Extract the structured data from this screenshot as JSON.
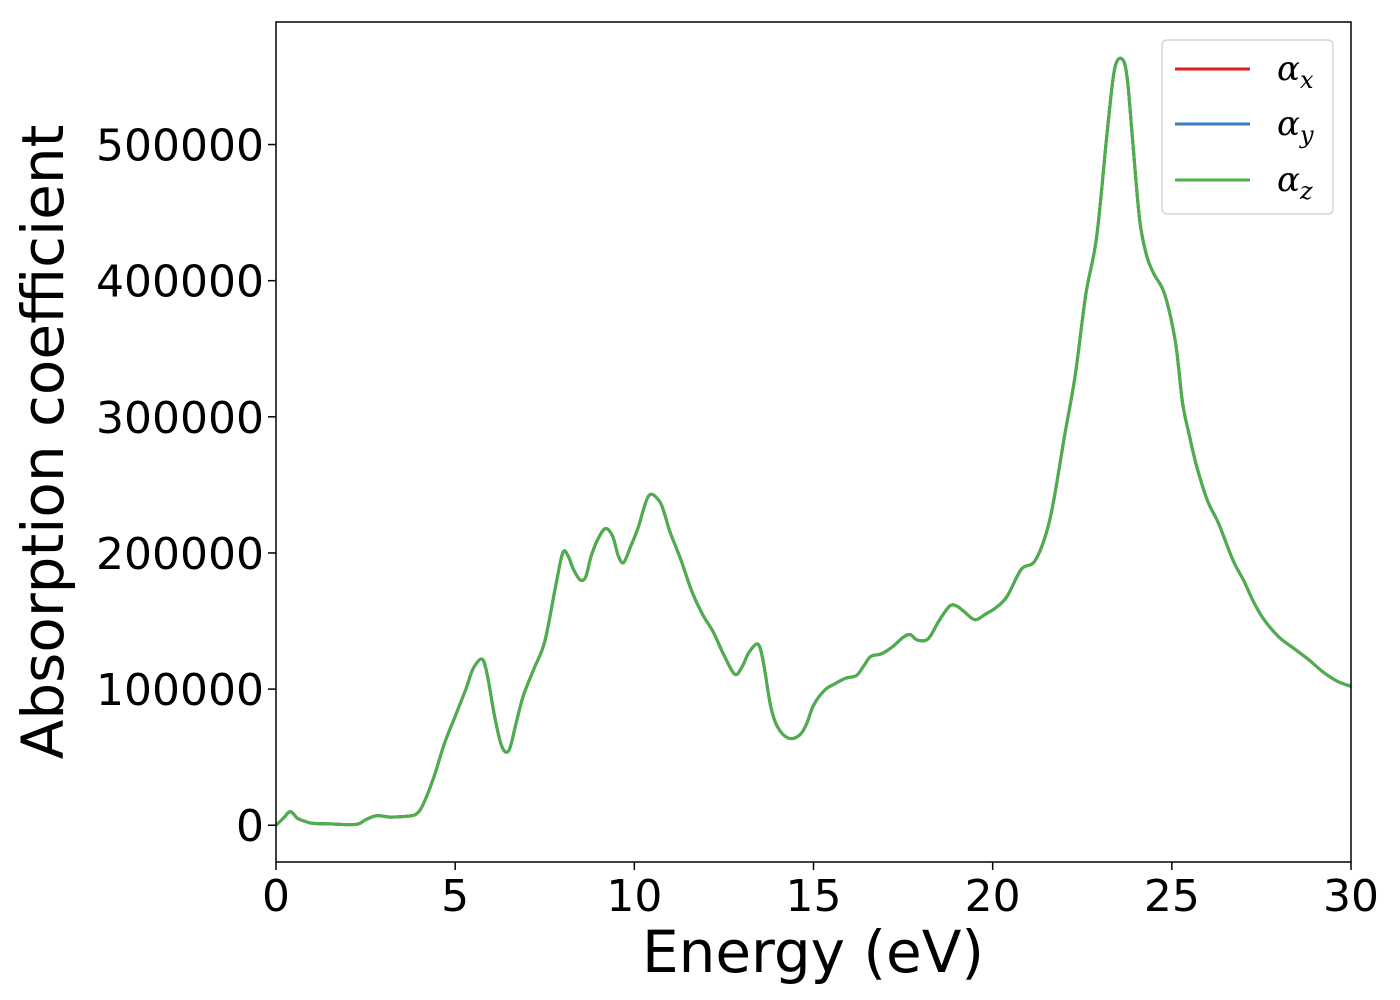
{
  "chart_data": {
    "type": "line",
    "xlabel": "Energy (eV)",
    "ylabel": "Absorption coefficient",
    "xlim": [
      0,
      30
    ],
    "ylim": [
      -27000,
      590000
    ],
    "xticks": [
      0,
      5,
      10,
      15,
      20,
      25,
      30
    ],
    "xtick_labels": [
      "0",
      "5",
      "10",
      "15",
      "20",
      "25",
      "30"
    ],
    "yticks": [
      0,
      100000,
      200000,
      300000,
      400000,
      500000
    ],
    "ytick_labels": [
      "0",
      "100000",
      "200000",
      "300000",
      "400000",
      "500000"
    ],
    "grid": false,
    "legend": "top-right",
    "series": [
      {
        "name": "α_x",
        "base": "α",
        "sub": "x",
        "color": "#e41a1c"
      },
      {
        "name": "α_y",
        "base": "α",
        "sub": "y",
        "color": "#377eb8"
      },
      {
        "name": "α_z",
        "base": "α",
        "sub": "z",
        "color": "#4daf4a"
      }
    ],
    "x": [
      0,
      0.2,
      0.4,
      0.6,
      0.8,
      1.0,
      1.5,
      2.0,
      2.3,
      2.5,
      2.8,
      3.2,
      3.6,
      3.9,
      4.1,
      4.4,
      4.7,
      5.0,
      5.3,
      5.5,
      5.75,
      5.9,
      6.1,
      6.3,
      6.5,
      6.7,
      6.9,
      7.2,
      7.5,
      7.8,
      8.0,
      8.15,
      8.3,
      8.5,
      8.65,
      8.8,
      9.0,
      9.2,
      9.4,
      9.55,
      9.7,
      9.9,
      10.1,
      10.4,
      10.7,
      10.85,
      11.0,
      11.3,
      11.6,
      11.9,
      12.2,
      12.5,
      12.8,
      13.0,
      13.2,
      13.45,
      13.6,
      13.8,
      14.0,
      14.3,
      14.6,
      14.8,
      15.0,
      15.3,
      15.6,
      15.9,
      16.2,
      16.4,
      16.6,
      16.9,
      17.2,
      17.5,
      17.7,
      17.9,
      18.2,
      18.5,
      18.8,
      19.0,
      19.2,
      19.5,
      19.8,
      20.1,
      20.4,
      20.8,
      21.2,
      21.6,
      22.0,
      22.3,
      22.6,
      22.9,
      23.2,
      23.4,
      23.6,
      23.75,
      23.9,
      24.1,
      24.3,
      24.5,
      24.8,
      25.1,
      25.3,
      25.5,
      25.7,
      26.0,
      26.3,
      26.7,
      27.0,
      27.3,
      27.6,
      28.0,
      28.4,
      28.8,
      29.2,
      29.6,
      30.0
    ],
    "values": [
      0,
      5000,
      10000,
      5000,
      3000,
      1500,
      1000,
      500,
      1000,
      4000,
      7000,
      6000,
      6500,
      8000,
      15000,
      35000,
      60000,
      80000,
      100000,
      115000,
      122000,
      110000,
      80000,
      58000,
      55000,
      75000,
      95000,
      115000,
      135000,
      175000,
      200000,
      198000,
      188000,
      180000,
      183000,
      198000,
      211000,
      218000,
      212000,
      198000,
      193000,
      205000,
      218000,
      242000,
      238000,
      228000,
      215000,
      195000,
      172000,
      155000,
      142000,
      125000,
      111000,
      116000,
      127000,
      133000,
      120000,
      88000,
      72000,
      64000,
      66000,
      74000,
      88000,
      99000,
      104000,
      108000,
      110000,
      117000,
      124000,
      126000,
      131000,
      138000,
      140000,
      136000,
      137000,
      150000,
      161000,
      161000,
      157000,
      151000,
      155000,
      160000,
      168000,
      188000,
      195000,
      225000,
      285000,
      330000,
      390000,
      432000,
      510000,
      555000,
      563000,
      550000,
      505000,
      445000,
      418000,
      405000,
      390000,
      355000,
      310000,
      285000,
      263000,
      238000,
      222000,
      195000,
      180000,
      163000,
      150000,
      138000,
      130000,
      122000,
      113000,
      106000,
      102000
    ]
  }
}
